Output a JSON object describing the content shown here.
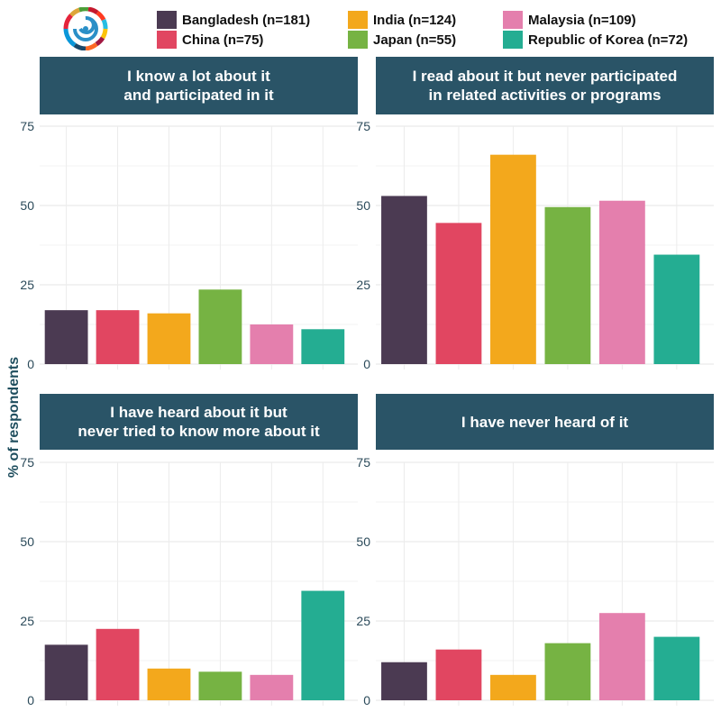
{
  "legend": [
    {
      "label": "Bangladesh (n=181)",
      "color": "#4b3a52"
    },
    {
      "label": "India (n=124)",
      "color": "#f3a81c"
    },
    {
      "label": "Malaysia (n=109)",
      "color": "#e47fad"
    },
    {
      "label": "China (n=75)",
      "color": "#e14661"
    },
    {
      "label": "Japan (n=55)",
      "color": "#76b343"
    },
    {
      "label": "Republic of Korea (n=72)",
      "color": "#24ad92"
    }
  ],
  "ylabel": "% of respondents",
  "chart_data": {
    "type": "bar",
    "categories": [
      "Bangladesh (n=181)",
      "China (n=75)",
      "India (n=124)",
      "Japan (n=55)",
      "Malaysia (n=109)",
      "Republic of Korea (n=72)"
    ],
    "colors": [
      "#4b3a52",
      "#e14661",
      "#f3a81c",
      "#76b343",
      "#e47fad",
      "#24ad92"
    ],
    "ylabel": "% of respondents",
    "ylim": [
      0,
      75
    ],
    "yticks": [
      "0",
      "25",
      "50",
      "75"
    ],
    "grid": true,
    "legend_position": "top",
    "panels": [
      {
        "title": "I know a lot about it\nand participated in it",
        "values": [
          17,
          17,
          16,
          23.5,
          12.5,
          11
        ]
      },
      {
        "title": "I read about it but never participated\nin related activities or programs",
        "values": [
          53,
          44.5,
          66,
          49.5,
          51.5,
          34.5
        ]
      },
      {
        "title": "I have heard about it but\nnever tried to know more about it",
        "values": [
          17.5,
          22.5,
          10,
          9,
          8,
          34.5
        ]
      },
      {
        "title": "I have never heard of it",
        "values": [
          12,
          16,
          8,
          18,
          27.5,
          20
        ]
      }
    ]
  }
}
